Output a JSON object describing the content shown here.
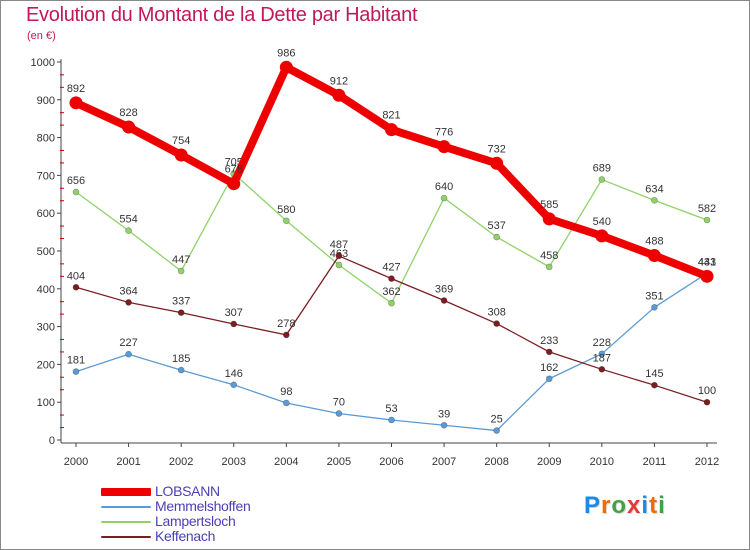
{
  "header": {
    "title": "Evolution du Montant de la Dette par Habitant",
    "subtitle": "(en €)"
  },
  "brand": {
    "logo_text": "Proxiti",
    "letter_colors": [
      "#1e88e5",
      "#ef6c00",
      "#43a047",
      "#e53935",
      "#1e88e5",
      "#ef6c00",
      "#43a047"
    ]
  },
  "chart_data": {
    "type": "line",
    "title": "Evolution du Montant de la Dette par Habitant",
    "subtitle": "(en €)",
    "xlabel": "",
    "ylabel": "",
    "x": [
      "2000",
      "2001",
      "2002",
      "2003",
      "2004",
      "2005",
      "2006",
      "2007",
      "2008",
      "2009",
      "2010",
      "2011",
      "2012"
    ],
    "ylim": [
      0,
      1000
    ],
    "yticks": [
      0,
      100,
      200,
      300,
      400,
      500,
      600,
      700,
      800,
      900,
      1000
    ],
    "grid": false,
    "legend_position": "bottom-left",
    "series": [
      {
        "name": "Memmelshoffen",
        "color": "#5b9bd5",
        "emphasis": false,
        "values": [
          181,
          227,
          185,
          146,
          98,
          70,
          53,
          39,
          25,
          162,
          228,
          351,
          441
        ]
      },
      {
        "name": "Lampertsloch",
        "color": "#8fd26b",
        "emphasis": false,
        "values": [
          656,
          554,
          447,
          705,
          580,
          463,
          362,
          640,
          537,
          458,
          689,
          634,
          582
        ]
      },
      {
        "name": "Keffenach",
        "color": "#7b1e22",
        "emphasis": false,
        "values": [
          404,
          364,
          337,
          307,
          278,
          487,
          427,
          369,
          308,
          233,
          187,
          145,
          100
        ]
      },
      {
        "name": "LOBSANN",
        "color": "#ee0000",
        "emphasis": true,
        "values": [
          892,
          828,
          754,
          678,
          986,
          912,
          821,
          776,
          732,
          585,
          540,
          488,
          433
        ]
      }
    ],
    "legend_order": [
      "LOBSANN",
      "Memmelshoffen",
      "Lampertsloch",
      "Keffenach"
    ]
  }
}
